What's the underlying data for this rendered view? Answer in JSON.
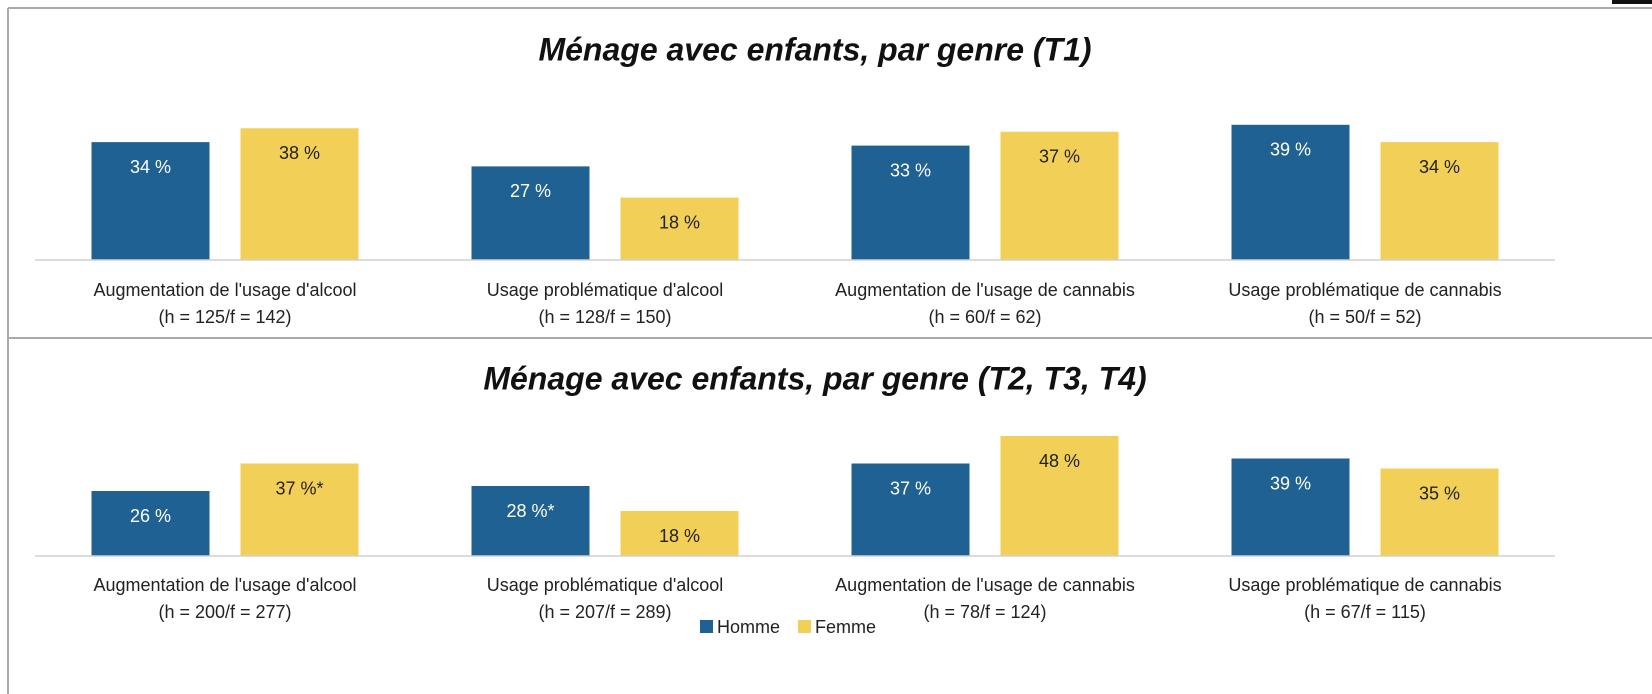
{
  "chart_data": [
    {
      "type": "bar",
      "title": "Ménage avec enfants, par genre (T1)",
      "categories": [
        [
          "Augmentation de l'usage d'alcool",
          "(h = 125/f = 142)"
        ],
        [
          "Usage problématique d'alcool",
          "(h = 128/f = 150)"
        ],
        [
          "Augmentation de l'usage de cannabis",
          "(h = 60/f = 62)"
        ],
        [
          "Usage problématique de cannabis",
          "(h =  50/f = 52)"
        ]
      ],
      "series": [
        {
          "name": "Homme",
          "color": "#1f6192",
          "values": [
            34,
            27,
            33,
            39
          ],
          "value_labels": [
            "34 %",
            "27 %",
            "33 %",
            "39 %"
          ]
        },
        {
          "name": "Femme",
          "color": "#f2cf57",
          "values": [
            38,
            18,
            37,
            34
          ],
          "value_labels": [
            "38 %",
            "18 %",
            "37 %",
            "34 %"
          ]
        }
      ],
      "ylim": [
        0,
        45
      ]
    },
    {
      "type": "bar",
      "title": "Ménage avec enfants, par genre (T2, T3, T4)",
      "categories": [
        [
          "Augmentation de l'usage d'alcool",
          "(h = 200/f = 277)"
        ],
        [
          "Usage problématique d'alcool",
          "(h = 207/f = 289)"
        ],
        [
          "Augmentation de l'usage de cannabis",
          "(h = 78/f = 124)"
        ],
        [
          "Usage problématique de cannabis",
          "(h = 67/f = 115)"
        ]
      ],
      "series": [
        {
          "name": "Homme",
          "color": "#1f6192",
          "values": [
            26,
            28,
            37,
            39
          ],
          "value_labels": [
            "26 %",
            "28 %*",
            "37 %",
            "39 %"
          ]
        },
        {
          "name": "Femme",
          "color": "#f2cf57",
          "values": [
            37,
            18,
            48,
            35
          ],
          "value_labels": [
            "37 %*",
            "18 %",
            "48 %",
            "35 %"
          ]
        }
      ],
      "ylim": [
        0,
        50
      ],
      "legend": "bottom"
    }
  ]
}
